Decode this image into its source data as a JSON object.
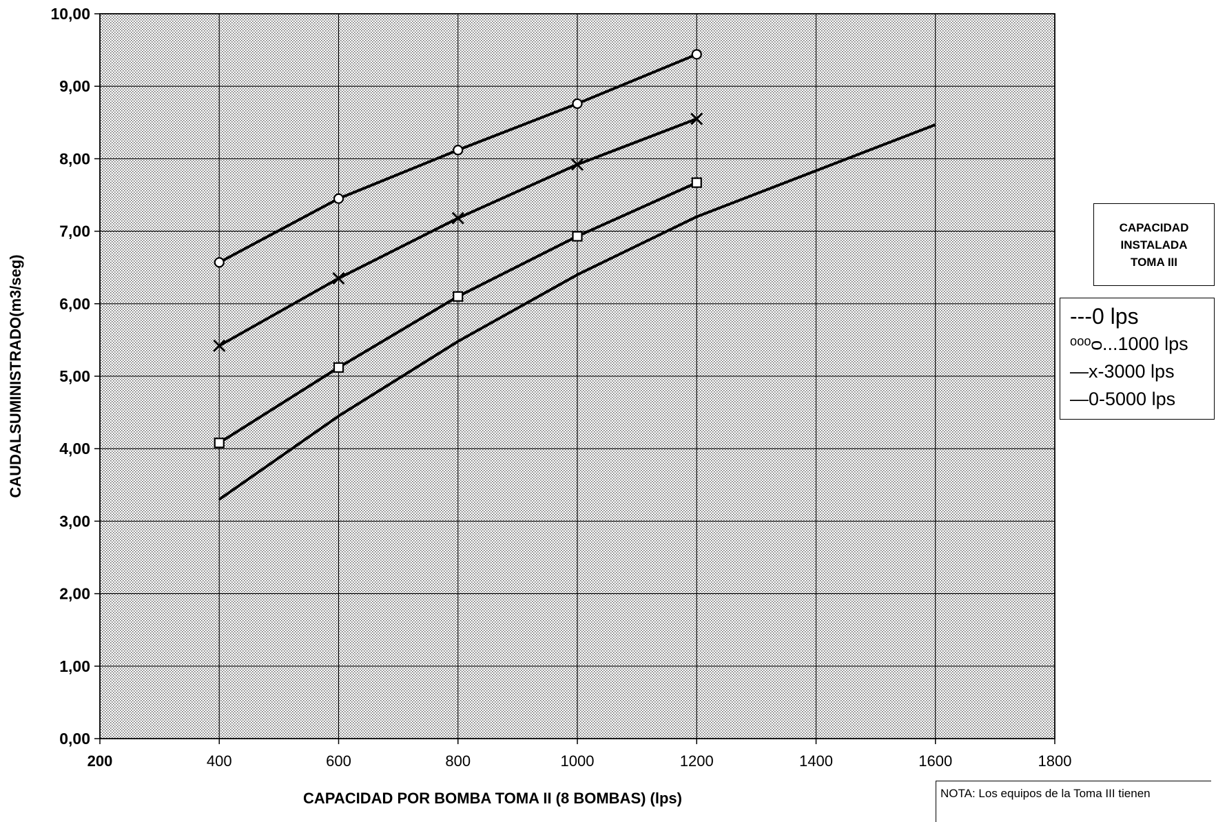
{
  "chart_data": {
    "type": "line",
    "title": "",
    "xlabel": "CAPACIDAD POR BOMBA TOMA II (8 BOMBAS) (lps)",
    "ylabel": "CAUDALSUMINISTRADO(m3/seg)",
    "xlim": [
      200,
      1800
    ],
    "ylim": [
      0,
      10
    ],
    "x_ticks": [
      "200",
      "400",
      "600",
      "800",
      "1000",
      "1200",
      "1400",
      "1600",
      "1800"
    ],
    "y_ticks": [
      "0,00",
      "1,00",
      "2,00",
      "3,00",
      "4,00",
      "5,00",
      "6,00",
      "7,00",
      "8,00",
      "9,00",
      "10,00"
    ],
    "grid": true,
    "legend_position": "right",
    "series": [
      {
        "name": "---0 lps",
        "marker": "none",
        "x": [
          400,
          600,
          800,
          1000,
          1200,
          1600
        ],
        "values": [
          3.3,
          4.45,
          5.48,
          6.4,
          7.2,
          8.47
        ]
      },
      {
        "name": "ᵒᵒᵒᴑ...1000 lps",
        "marker": "circle",
        "x": [
          400,
          600,
          800,
          1000,
          1200
        ],
        "values": [
          6.57,
          7.45,
          8.12,
          8.76,
          9.44
        ]
      },
      {
        "name": "—x-3000 lps",
        "marker": "x",
        "x": [
          400,
          600,
          800,
          1000,
          1200
        ],
        "values": [
          5.42,
          6.35,
          7.18,
          7.92,
          8.55
        ]
      },
      {
        "name": "—0-5000 lps",
        "marker": "square",
        "x": [
          400,
          600,
          800,
          1000,
          1200
        ],
        "values": [
          4.08,
          5.12,
          6.1,
          6.93,
          7.67
        ]
      }
    ]
  },
  "capacity_box": {
    "line1": "CAPACIDAD",
    "line2": "INSTALADA",
    "line3": "TOMA III"
  },
  "legend": {
    "items": [
      "---0 lps",
      "ᵒᵒᵒᴑ...1000 lps",
      "—x-3000  lps",
      "—0-5000 lps"
    ]
  },
  "note": {
    "text": "NOTA: Los equipos de la Toma III tienen"
  },
  "colors": {
    "plot_background": "#d9d9d9",
    "grid": "#000000",
    "line": "#000000"
  }
}
